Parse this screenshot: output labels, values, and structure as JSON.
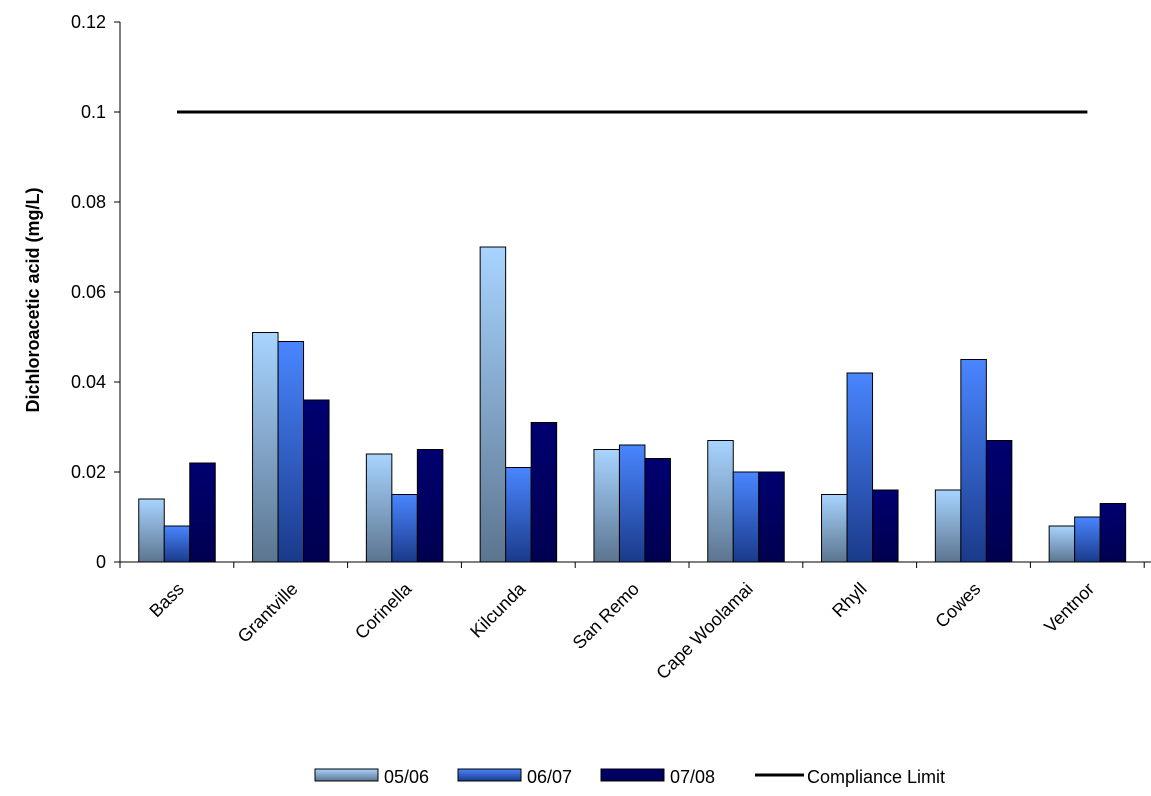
{
  "chart_data": {
    "type": "bar",
    "ylabel": "Dichloroacetic acid (mg/L)",
    "xlabel": "",
    "ylim": [
      0,
      0.12
    ],
    "yticks": [
      "0",
      "0.02",
      "0.04",
      "0.06",
      "0.08",
      "0.1",
      "0.12"
    ],
    "categories": [
      "Bass",
      "Grantville",
      "Corinella",
      "Kilcunda",
      "San Remo",
      "Cape Woolamai",
      "Rhyll",
      "Cowes",
      "Ventnor"
    ],
    "series": [
      {
        "name": "05/06",
        "values": [
          0.014,
          0.051,
          0.024,
          0.07,
          0.025,
          0.027,
          0.015,
          0.016,
          0.008
        ],
        "color_top": "#a8d4ff",
        "color_bottom": "#5c7590"
      },
      {
        "name": "06/07",
        "values": [
          0.008,
          0.049,
          0.015,
          0.021,
          0.026,
          0.02,
          0.042,
          0.045,
          0.01
        ],
        "color_top": "#4a86ff",
        "color_bottom": "#1a3a8a"
      },
      {
        "name": "07/08",
        "values": [
          0.022,
          0.036,
          0.025,
          0.031,
          0.023,
          0.02,
          0.016,
          0.027,
          0.013
        ],
        "color_top": "#000070",
        "color_bottom": "#000050"
      }
    ],
    "compliance": {
      "name": "Compliance Limit",
      "value": 0.1,
      "color": "#000000"
    },
    "grid": false,
    "legend_position": "bottom"
  }
}
